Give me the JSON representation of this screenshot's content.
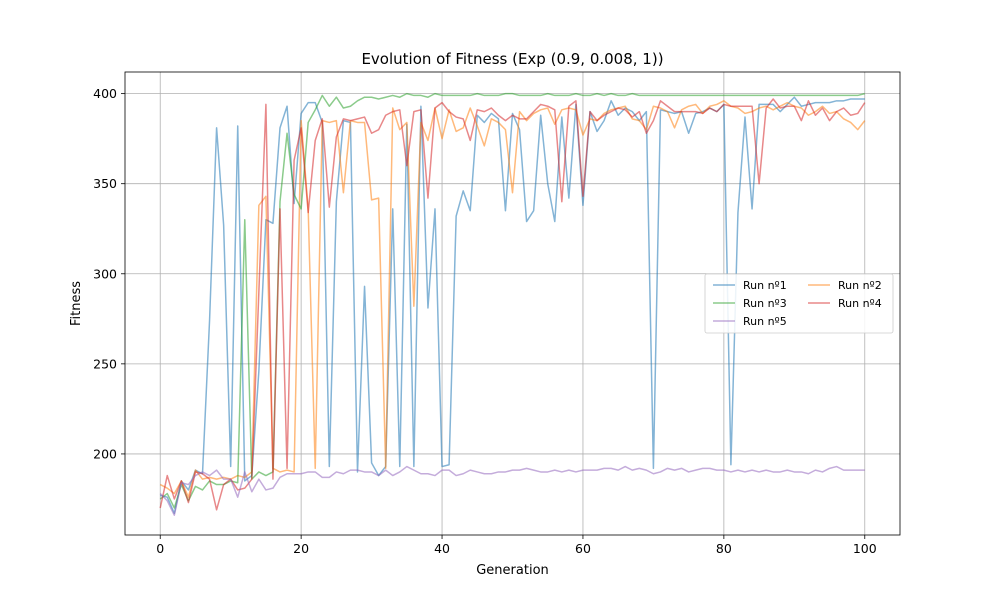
{
  "chart_data": {
    "type": "line",
    "title": "Evolution of Fitness (Exp (0.9, 0.008, 1))",
    "xlabel": "Generation",
    "ylabel": "Fitness",
    "xlim": [
      -5,
      105
    ],
    "ylim": [
      155,
      412
    ],
    "xticks": [
      0,
      20,
      40,
      60,
      80,
      100
    ],
    "yticks": [
      200,
      250,
      300,
      350,
      400
    ],
    "grid": true,
    "legend_position": "center-right",
    "series": [
      {
        "name": "Run nº1",
        "color": "#1f77b4",
        "values": [
          177,
          176,
          167,
          185,
          180,
          191,
          189,
          274,
          381,
          327,
          193,
          382,
          185,
          188,
          246,
          330,
          328,
          381,
          393,
          339,
          389,
          395,
          395,
          384,
          193,
          340,
          385,
          384,
          190,
          293,
          195,
          188,
          193,
          336,
          193,
          383,
          193,
          393,
          281,
          336,
          193,
          194,
          332,
          346,
          335,
          388,
          384,
          389,
          386,
          335,
          389,
          380,
          329,
          335,
          388,
          350,
          329,
          387,
          342,
          394,
          338,
          390,
          379,
          385,
          396,
          388,
          392,
          390,
          385,
          390,
          192,
          391,
          390,
          389,
          390,
          378,
          389,
          390,
          392,
          390,
          394,
          194,
          334,
          387,
          336,
          394,
          394,
          394,
          390,
          394,
          398,
          393,
          394,
          395,
          395,
          395,
          396,
          396,
          397,
          397,
          397
        ]
      },
      {
        "name": "Run nº2",
        "color": "#ff7f0e",
        "values": [
          183,
          181,
          178,
          185,
          176,
          191,
          186,
          187,
          186,
          187,
          186,
          188,
          187,
          190,
          338,
          343,
          192,
          190,
          191,
          190,
          385,
          336,
          192,
          385,
          384,
          385,
          345,
          385,
          384,
          384,
          341,
          342,
          192,
          392,
          380,
          384,
          282,
          384,
          374,
          392,
          375,
          391,
          379,
          381,
          392,
          382,
          371,
          386,
          384,
          380,
          345,
          390,
          385,
          389,
          391,
          392,
          383,
          391,
          392,
          391,
          377,
          386,
          385,
          389,
          391,
          392,
          393,
          386,
          385,
          380,
          393,
          392,
          390,
          381,
          391,
          393,
          394,
          389,
          393,
          394,
          396,
          393,
          392,
          389,
          390,
          392,
          393,
          391,
          393,
          395,
          393,
          392,
          388,
          390,
          393,
          389,
          390,
          386,
          384,
          380,
          385
        ]
      },
      {
        "name": "Run nº3",
        "color": "#2ca02c",
        "values": [
          175,
          178,
          170,
          183,
          174,
          182,
          180,
          185,
          183,
          183,
          185,
          184,
          330,
          186,
          190,
          188,
          190,
          340,
          378,
          344,
          336,
          384,
          391,
          399,
          393,
          398,
          392,
          393,
          396,
          398,
          398,
          397,
          398,
          399,
          398,
          400,
          399,
          399,
          398,
          400,
          399,
          399,
          399,
          399,
          399,
          400,
          399,
          399,
          399,
          400,
          400,
          399,
          399,
          399,
          399,
          400,
          399,
          399,
          399,
          400,
          399,
          399,
          400,
          399,
          400,
          399,
          399,
          400,
          399,
          399,
          399,
          399,
          399,
          399,
          399,
          399,
          399,
          399,
          399,
          399,
          399,
          399,
          399,
          399,
          399,
          399,
          399,
          399,
          399,
          399,
          399,
          399,
          399,
          399,
          399,
          399,
          399,
          399,
          399,
          399,
          400
        ]
      },
      {
        "name": "Run nº4",
        "color": "#d62728",
        "values": [
          170,
          188,
          175,
          185,
          173,
          190,
          189,
          186,
          169,
          183,
          186,
          180,
          181,
          186,
          290,
          394,
          186,
          336,
          192,
          363,
          381,
          334,
          374,
          386,
          337,
          376,
          386,
          385,
          386,
          387,
          378,
          380,
          388,
          390,
          391,
          360,
          390,
          391,
          342,
          392,
          395,
          390,
          387,
          386,
          374,
          391,
          390,
          392,
          388,
          385,
          388,
          386,
          386,
          390,
          394,
          393,
          391,
          340,
          393,
          396,
          343,
          390,
          385,
          388,
          390,
          392,
          391,
          387,
          390,
          378,
          385,
          396,
          393,
          390,
          390,
          390,
          390,
          389,
          392,
          390,
          394,
          393,
          393,
          393,
          393,
          350,
          392,
          397,
          392,
          393,
          393,
          385,
          396,
          388,
          392,
          385,
          390,
          392,
          388,
          389,
          395
        ]
      },
      {
        "name": "Run nº5",
        "color": "#9467bd",
        "values": [
          178,
          174,
          166,
          184,
          183,
          188,
          190,
          188,
          191,
          186,
          186,
          176,
          190,
          179,
          186,
          180,
          181,
          187,
          189,
          189,
          189,
          190,
          190,
          187,
          187,
          190,
          189,
          191,
          191,
          190,
          190,
          188,
          191,
          188,
          190,
          193,
          191,
          189,
          189,
          188,
          191,
          191,
          188,
          189,
          191,
          190,
          189,
          189,
          190,
          190,
          191,
          191,
          192,
          191,
          190,
          190,
          191,
          190,
          191,
          190,
          191,
          191,
          191,
          192,
          192,
          191,
          193,
          191,
          192,
          191,
          189,
          190,
          192,
          191,
          192,
          190,
          191,
          192,
          192,
          191,
          191,
          190,
          191,
          190,
          191,
          190,
          191,
          190,
          190,
          191,
          190,
          190,
          189,
          191,
          190,
          192,
          193,
          191,
          191,
          191,
          191
        ]
      }
    ]
  }
}
